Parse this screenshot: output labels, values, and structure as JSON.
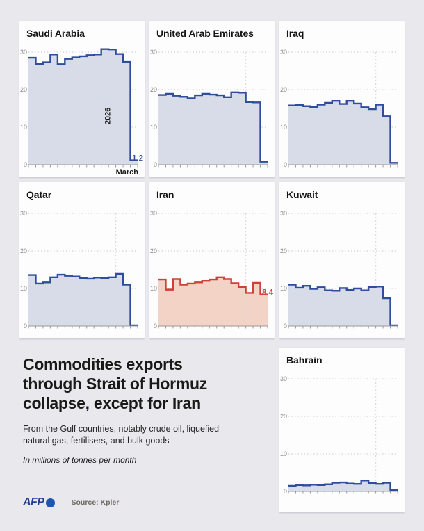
{
  "page": {
    "background": "#e9e8ed"
  },
  "headline": {
    "title_lines": [
      "Commodities exports",
      "through Strait of Hormuz",
      "collapse, except for Iran"
    ],
    "subtitle_lines": [
      "From the Gulf countries, notably crude oil, liquefied",
      "natural gas, fertilisers, and bulk goods"
    ],
    "note": "In millions of tonnes per month"
  },
  "footer": {
    "logo": "AFP",
    "source": "Source: Kpler"
  },
  "colors": {
    "blue_line": "#2e4d9b",
    "blue_fill": "#d8dce8",
    "red_line": "#cf4137",
    "red_fill": "#f2d3c5",
    "grid": "#c8c8c8",
    "axis": "#9a9a9a",
    "tick_label": "#8c8c8c",
    "text": "#1d1d1b"
  },
  "chart_data": [
    {
      "title": "Saudi Arabia",
      "type": "step-area",
      "values": [
        28.5,
        26.9,
        27.3,
        29.4,
        26.8,
        28.2,
        28.6,
        28.9,
        29.2,
        29.4,
        30.8,
        30.7,
        29.5,
        27.4,
        1.2
      ],
      "ylim": [
        0,
        30
      ],
      "yticks": [
        0,
        10,
        20,
        30
      ],
      "months": 15,
      "divider_after_month": 12,
      "line_color": "#2e4d9b",
      "fill_color": "#d8dce8",
      "annotations": {
        "period_label": "2026",
        "end_value": "1.2",
        "axis_end_label": "March"
      }
    },
    {
      "title": "United Arab Emirates",
      "type": "step-area",
      "values": [
        18.6,
        18.9,
        18.4,
        18.1,
        17.7,
        18.5,
        18.9,
        18.7,
        18.5,
        18.0,
        19.3,
        19.2,
        16.7,
        16.6,
        0.8
      ],
      "ylim": [
        0,
        30
      ],
      "yticks": [
        0,
        10,
        20,
        30
      ],
      "months": 15,
      "divider_after_month": 12,
      "line_color": "#2e4d9b",
      "fill_color": "#d8dce8",
      "annotations": {}
    },
    {
      "title": "Iraq",
      "type": "step-area",
      "values": [
        15.8,
        15.9,
        15.6,
        15.4,
        16.0,
        16.5,
        17.0,
        16.2,
        17.0,
        16.3,
        15.3,
        14.8,
        16.0,
        12.9,
        0.5
      ],
      "ylim": [
        0,
        30
      ],
      "yticks": [
        0,
        10,
        20,
        30
      ],
      "months": 15,
      "divider_after_month": 12,
      "line_color": "#2e4d9b",
      "fill_color": "#d8dce8",
      "annotations": {}
    },
    {
      "title": "Qatar",
      "type": "step-area",
      "values": [
        13.6,
        11.3,
        11.6,
        13.0,
        13.7,
        13.4,
        13.2,
        12.8,
        12.6,
        12.9,
        12.8,
        13.0,
        13.9,
        11.0,
        0.2
      ],
      "ylim": [
        0,
        30
      ],
      "yticks": [
        0,
        10,
        20,
        30
      ],
      "months": 15,
      "divider_after_month": 12,
      "line_color": "#2e4d9b",
      "fill_color": "#d8dce8",
      "annotations": {}
    },
    {
      "title": "Iran",
      "type": "step-area",
      "values": [
        12.4,
        9.7,
        12.5,
        11.0,
        11.3,
        11.6,
        12.0,
        12.4,
        13.0,
        12.5,
        11.4,
        10.4,
        8.8,
        11.5,
        8.4
      ],
      "ylim": [
        0,
        30
      ],
      "yticks": [
        0,
        10,
        20,
        30
      ],
      "months": 15,
      "divider_after_month": 12,
      "line_color": "#cf4137",
      "fill_color": "#f2d3c5",
      "annotations": {
        "end_value": "8.4"
      }
    },
    {
      "title": "Kuwait",
      "type": "step-area",
      "values": [
        11.0,
        10.2,
        10.7,
        9.9,
        10.3,
        9.5,
        9.4,
        10.1,
        9.6,
        10.0,
        9.5,
        10.4,
        10.5,
        7.4,
        0.2
      ],
      "ylim": [
        0,
        30
      ],
      "yticks": [
        0,
        10,
        20,
        30
      ],
      "months": 15,
      "divider_after_month": 12,
      "line_color": "#2e4d9b",
      "fill_color": "#d8dce8",
      "annotations": {}
    },
    {
      "title": "Bahrain",
      "type": "step-area",
      "values": [
        1.5,
        1.7,
        1.6,
        1.8,
        1.7,
        1.9,
        2.3,
        2.4,
        2.1,
        2.0,
        2.9,
        2.2,
        2.0,
        2.3,
        0.4
      ],
      "ylim": [
        0,
        30
      ],
      "yticks": [
        0,
        10,
        20,
        30
      ],
      "months": 15,
      "divider_after_month": 12,
      "line_color": "#2e4d9b",
      "fill_color": "#d8dce8",
      "annotations": {}
    }
  ]
}
